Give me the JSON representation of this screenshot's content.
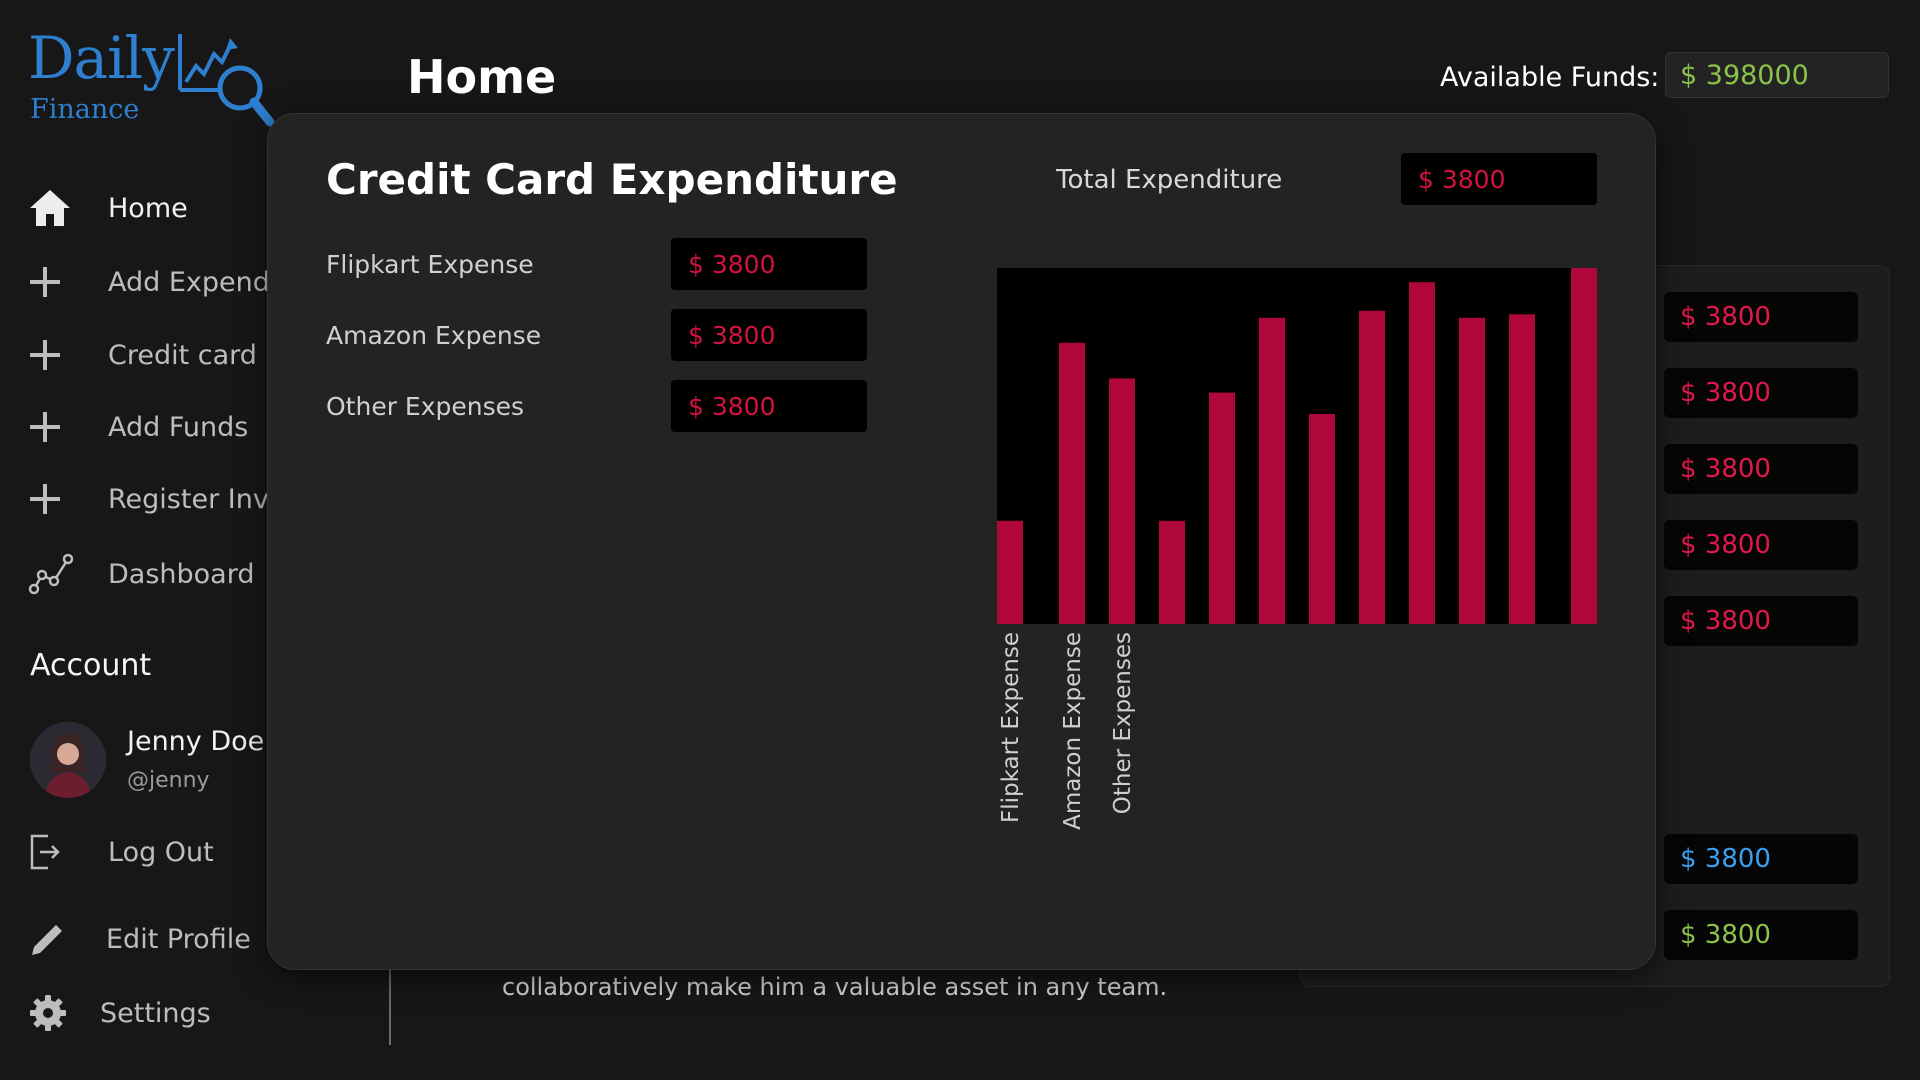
{
  "app": {
    "logo_main": "Daily",
    "logo_sub": "Finance"
  },
  "sidebar": {
    "items": [
      {
        "label": "Home",
        "icon": "home-icon"
      },
      {
        "label": "Add Expenditure",
        "icon": "plus-icon"
      },
      {
        "label": "Credit card Expenditure",
        "icon": "plus-icon"
      },
      {
        "label": "Add Funds",
        "icon": "plus-icon"
      },
      {
        "label": "Register Investment",
        "icon": "plus-icon"
      },
      {
        "label": "Dashboard",
        "icon": "chart-line-icon"
      }
    ],
    "account_title": "Account",
    "user_name": "Jenny Doe",
    "user_handle": "@jenny",
    "logout_label": "Log Out",
    "edit_profile_label": "Edit Profile",
    "settings_label": "Settings"
  },
  "header": {
    "title": "Home",
    "funds_label": "Available Funds:",
    "funds_value": "$ 398000"
  },
  "background": {
    "values": [
      "$ 3800",
      "$ 3800",
      "$ 3800",
      "$ 3800",
      "$ 3800"
    ],
    "blue_value": "$ 3800",
    "green_value": "$ 3800",
    "text_line": "collaboratively make him a valuable asset in any team."
  },
  "modal": {
    "title": "Credit Card Expenditure",
    "total_label": "Total Expenditure",
    "total_value": "$ 3800",
    "expenses": [
      {
        "label": "Flipkart Expense",
        "value": "$ 3800"
      },
      {
        "label": "Amazon Expense",
        "value": "$ 3800"
      },
      {
        "label": "Other Expenses",
        "value": "$ 3800"
      }
    ]
  },
  "colors": {
    "accent_blue": "#2f7fd0",
    "bar_red": "#b0073a",
    "value_red": "#d3123e",
    "funds_green": "#8bc34a"
  },
  "chart_data": {
    "type": "bar",
    "categories": [
      "Flipkart Expense",
      "Amazon Expense",
      "Other Expenses",
      "",
      "",
      "",
      "",
      "",
      "",
      "",
      "",
      ""
    ],
    "values": [
      29,
      79,
      69,
      29,
      65,
      86,
      59,
      88,
      96,
      86,
      87,
      100
    ],
    "ylim": [
      0,
      100
    ],
    "grid": false
  }
}
